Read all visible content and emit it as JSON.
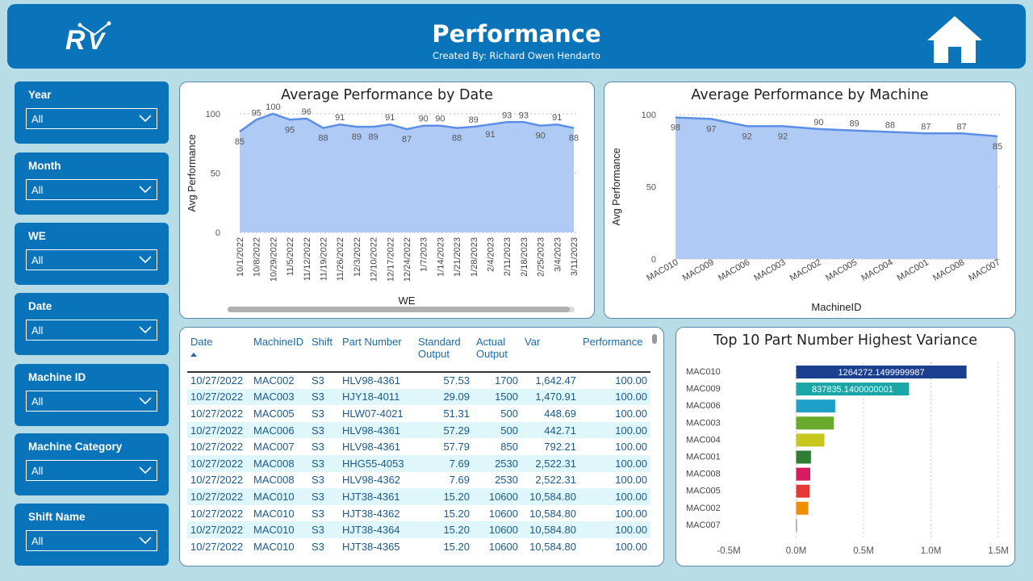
{
  "header": {
    "title": "Performance",
    "subtitle": "Created By: Richard Owen Hendarto",
    "logo_text": "RV"
  },
  "colors": {
    "brand_blue": "#0a74bb",
    "background": "#b9dde6",
    "area_fill": "#afcbf5",
    "line": "#5d8fe6"
  },
  "slicers": [
    {
      "label": "Year",
      "value": "All"
    },
    {
      "label": "Month",
      "value": "All"
    },
    {
      "label": "WE",
      "value": "All"
    },
    {
      "label": "Date",
      "value": "All"
    },
    {
      "label": "Machine ID",
      "value": "All"
    },
    {
      "label": "Machine Category",
      "value": "All"
    },
    {
      "label": "Shift Name",
      "value": "All"
    }
  ],
  "chart_data": [
    {
      "type": "area",
      "title": "Average Performance by Date",
      "xlabel": "WE",
      "ylabel": "Avg Performance",
      "ylim": [
        0,
        100
      ],
      "yticks": [
        0,
        50,
        100
      ],
      "grid": true,
      "x": [
        "10/1/2022",
        "10/8/2022",
        "10/29/2022",
        "11/5/2022",
        "11/12/2022",
        "11/19/2022",
        "11/26/2022",
        "12/3/2022",
        "12/10/2022",
        "12/17/2022",
        "12/24/2022",
        "1/7/2023",
        "1/14/2023",
        "1/21/2023",
        "1/28/2023",
        "2/4/2023",
        "2/11/2023",
        "2/18/2023",
        "2/25/2023",
        "3/4/2023",
        "3/11/2023"
      ],
      "values": [
        85,
        95,
        100,
        95,
        96,
        88,
        91,
        89,
        89,
        91,
        87,
        90,
        90,
        88,
        89,
        91,
        93,
        93,
        90,
        91,
        88
      ]
    },
    {
      "type": "area",
      "title": "Average Performance by Machine",
      "xlabel": "MachineID",
      "ylabel": "Avg Performance",
      "ylim": [
        0,
        100
      ],
      "yticks": [
        0,
        50,
        100
      ],
      "grid": true,
      "x": [
        "MAC010",
        "MAC009",
        "MAC006",
        "MAC003",
        "MAC002",
        "MAC005",
        "MAC004",
        "MAC001",
        "MAC008",
        "MAC007"
      ],
      "values": [
        98,
        97,
        92,
        92,
        90,
        89,
        88,
        87,
        87,
        85
      ]
    },
    {
      "type": "bar",
      "orientation": "horizontal",
      "title": "Top 10 Part Number Highest Variance",
      "categories": [
        "MAC010",
        "MAC009",
        "MAC006",
        "MAC003",
        "MAC004",
        "MAC001",
        "MAC008",
        "MAC005",
        "MAC002",
        "MAC007"
      ],
      "values": [
        1264272.1499999987,
        837835.1400000001,
        290000,
        280000,
        210000,
        110000,
        105000,
        100000,
        90000,
        5000
      ],
      "labels": [
        "1264272.1499999987",
        "837835.1400000001",
        "",
        "",
        "",
        "",
        "",
        "",
        "",
        ""
      ],
      "colors": [
        "#1b3f8f",
        "#1aa6a6",
        "#1ea1c9",
        "#6aaa2a",
        "#c7c71e",
        "#2e7d32",
        "#d81b60",
        "#e53935",
        "#ef8f00",
        "#7a7a7a"
      ],
      "xlim": [
        -500000,
        1500000
      ],
      "xticks": [
        -500000,
        0,
        500000,
        1000000,
        1500000
      ],
      "xtick_labels": [
        "-0.5M",
        "0.0M",
        "0.5M",
        "1.0M",
        "1.5M"
      ],
      "grid": true
    }
  ],
  "table": {
    "columns": [
      "Date",
      "MachineID",
      "Shift",
      "Part Number",
      "Standard Output",
      "Actual Output",
      "Var",
      "Performance"
    ],
    "rows": [
      [
        "10/27/2022",
        "MAC002",
        "S3",
        "HLV98-4361",
        "57.53",
        "1700",
        "1,642.47",
        "100.00"
      ],
      [
        "10/27/2022",
        "MAC003",
        "S3",
        "HJY18-4011",
        "29.09",
        "1500",
        "1,470.91",
        "100.00"
      ],
      [
        "10/27/2022",
        "MAC005",
        "S3",
        "HLW07-4021",
        "51.31",
        "500",
        "448.69",
        "100.00"
      ],
      [
        "10/27/2022",
        "MAC006",
        "S3",
        "HLV98-4361",
        "57.29",
        "500",
        "442.71",
        "100.00"
      ],
      [
        "10/27/2022",
        "MAC007",
        "S3",
        "HLV98-4361",
        "57.79",
        "850",
        "792.21",
        "100.00"
      ],
      [
        "10/27/2022",
        "MAC008",
        "S3",
        "HHG55-4053",
        "7.69",
        "2530",
        "2,522.31",
        "100.00"
      ],
      [
        "10/27/2022",
        "MAC008",
        "S3",
        "HLV98-4362",
        "7.69",
        "2530",
        "2,522.31",
        "100.00"
      ],
      [
        "10/27/2022",
        "MAC010",
        "S3",
        "HJT38-4361",
        "15.20",
        "10600",
        "10,584.80",
        "100.00"
      ],
      [
        "10/27/2022",
        "MAC010",
        "S3",
        "HJT38-4362",
        "15.20",
        "10600",
        "10,584.80",
        "100.00"
      ],
      [
        "10/27/2022",
        "MAC010",
        "S3",
        "HJT38-4364",
        "15.20",
        "10600",
        "10,584.80",
        "100.00"
      ],
      [
        "10/27/2022",
        "MAC010",
        "S3",
        "HJT38-4365",
        "15.20",
        "10600",
        "10,584.80",
        "100.00"
      ]
    ]
  }
}
